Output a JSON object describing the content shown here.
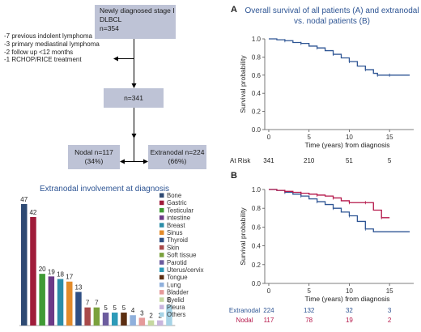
{
  "flowchart": {
    "top_box": [
      "Newly diagnosed stage I",
      "DLBCL",
      "n=354"
    ],
    "exclusions": [
      "-7 previous indolent lymphoma",
      "-3 primary mediastinal lymphoma",
      "-2 follow up <12 months",
      "-1 RCHOP/RICE treatment"
    ],
    "middle_box": "n=341",
    "nodal_box": [
      "Nodal n=117",
      "(34%)"
    ],
    "extranodal_box": [
      "Extranodal n=224",
      "(66%)"
    ]
  },
  "panel_labels": {
    "a": "A",
    "b": "B"
  },
  "chart_data": [
    {
      "id": "extranodal-bar",
      "type": "bar",
      "title": "Extranodal involvement at diagnosis",
      "categories": [
        "Bone",
        "Gastric",
        "Testicular",
        "intestine",
        "Breast",
        "Sinus",
        "Thyroid",
        "Skin",
        "Soft tissue",
        "Parotid",
        "Uterus/cervix",
        "Tongue",
        "Lung",
        "Bladder",
        "Eyelid",
        "Pleura",
        "Others"
      ],
      "values": [
        47,
        42,
        20,
        19,
        18,
        17,
        13,
        7,
        7,
        5,
        5,
        5,
        4,
        3,
        2,
        2,
        8
      ],
      "colors": [
        "#2e4a73",
        "#a01c3a",
        "#3f9a34",
        "#6b3a87",
        "#2b8da8",
        "#e38b2a",
        "#2f4f84",
        "#a84a4a",
        "#7aa13c",
        "#6c5c9e",
        "#2d9ab8",
        "#5c2f12",
        "#8fb0dc",
        "#e59a9a",
        "#c6d8a0",
        "#c8b5dd",
        "#a6d3e6"
      ],
      "legend_position": "right"
    },
    {
      "id": "survival-a",
      "type": "line",
      "title": [
        "Overall survival of all patients (A) and extranodal",
        "vs. nodal patients (B)"
      ],
      "xlabel": "Time (years) from diagnosis",
      "ylabel": "Survival probability",
      "xlim": [
        -0.5,
        18
      ],
      "ylim": [
        0,
        1.0
      ],
      "xticks": [
        0,
        5,
        10,
        15
      ],
      "yticks": [
        0.0,
        0.2,
        0.4,
        0.6,
        0.8,
        1.0
      ],
      "series": [
        {
          "color": "#2e5594",
          "x": [
            0,
            1,
            2,
            3,
            4,
            5,
            6,
            7,
            8,
            9,
            10,
            11,
            12,
            13,
            13.5,
            14,
            15,
            16,
            17.5
          ],
          "y": [
            1.0,
            0.99,
            0.98,
            0.96,
            0.95,
            0.92,
            0.9,
            0.87,
            0.83,
            0.79,
            0.75,
            0.7,
            0.66,
            0.62,
            0.6,
            0.6,
            0.6,
            0.6,
            0.6
          ]
        }
      ],
      "at_risk": {
        "label": "At Risk",
        "times": [
          0,
          5,
          10,
          15
        ],
        "counts": [
          341,
          210,
          51,
          5
        ]
      }
    },
    {
      "id": "survival-b",
      "type": "line",
      "xlabel": "Time (years) from diagnosis",
      "ylabel": "Survival probability",
      "xlim": [
        -0.5,
        18
      ],
      "ylim": [
        0,
        1.0
      ],
      "xticks": [
        0,
        5,
        10,
        15
      ],
      "yticks": [
        0.0,
        0.2,
        0.4,
        0.6,
        0.8,
        1.0
      ],
      "series": [
        {
          "name": "Extranodal",
          "color": "#2e5594",
          "x": [
            0,
            1,
            2,
            3,
            4,
            5,
            6,
            7,
            8,
            9,
            10,
            11,
            12,
            13,
            17.5
          ],
          "y": [
            1.0,
            0.99,
            0.97,
            0.95,
            0.93,
            0.9,
            0.87,
            0.84,
            0.8,
            0.76,
            0.72,
            0.66,
            0.58,
            0.55,
            0.55
          ]
        },
        {
          "name": "Nodal",
          "color": "#b5174a",
          "x": [
            0,
            1,
            2,
            3,
            4,
            5,
            6,
            7,
            8,
            9,
            10,
            11,
            12,
            13,
            14,
            15
          ],
          "y": [
            1.0,
            0.99,
            0.98,
            0.97,
            0.96,
            0.95,
            0.94,
            0.93,
            0.91,
            0.88,
            0.86,
            0.86,
            0.86,
            0.78,
            0.7,
            0.7
          ]
        }
      ],
      "at_risk": {
        "times": [
          0,
          5,
          10,
          15
        ],
        "rows": [
          {
            "label": "Extranodal",
            "color": "#2e5594",
            "counts": [
              224,
              132,
              32,
              3
            ]
          },
          {
            "label": "Nodal",
            "color": "#b5174a",
            "counts": [
              117,
              78,
              19,
              2
            ]
          }
        ]
      }
    }
  ]
}
